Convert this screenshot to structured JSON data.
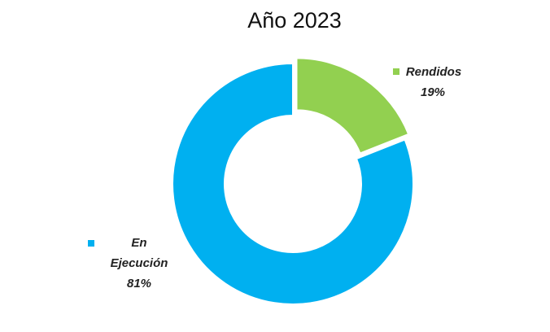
{
  "chart_data": {
    "type": "donut",
    "title": "Año 2023",
    "categories": [
      "Rendidos",
      "En Ejecución"
    ],
    "values": [
      19,
      81
    ],
    "value_labels": [
      "19%",
      "81%"
    ],
    "colors": [
      "#92d050",
      "#00b0f0"
    ]
  }
}
